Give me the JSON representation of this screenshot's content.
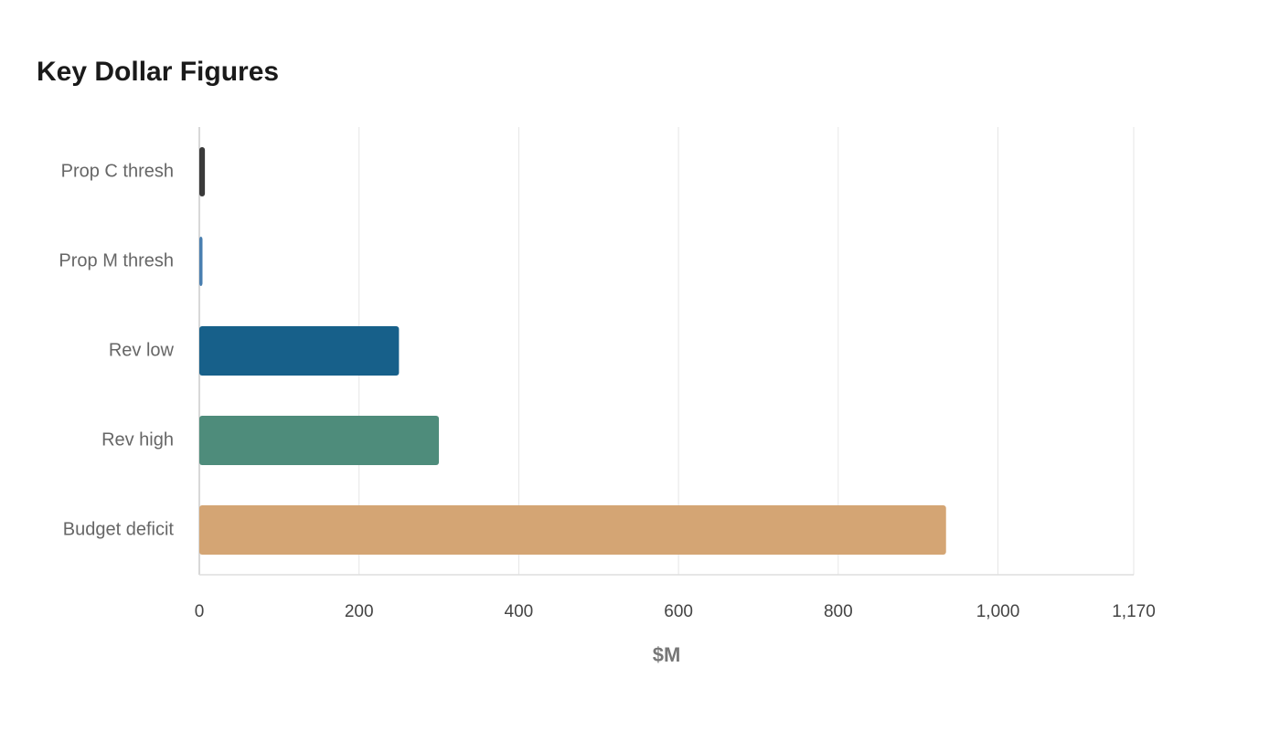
{
  "chart_data": {
    "type": "bar",
    "orientation": "horizontal",
    "title": "Key Dollar Figures",
    "categories": [
      "Prop C thresh",
      "Prop M thresh",
      "Rev low",
      "Rev high",
      "Budget deficit"
    ],
    "values": [
      7,
      4,
      250,
      300,
      935
    ],
    "colors": [
      "#3a3a3a",
      "#4a7fb0",
      "#17608a",
      "#4e8c7b",
      "#d4a574"
    ],
    "x_label": "$M",
    "xlim": [
      0,
      1170
    ],
    "xticks": [
      0,
      200,
      400,
      600,
      800,
      {
        "value": 1000,
        "label": "1,000"
      },
      {
        "value": 1170,
        "label": "1,170"
      }
    ],
    "grid": true
  }
}
